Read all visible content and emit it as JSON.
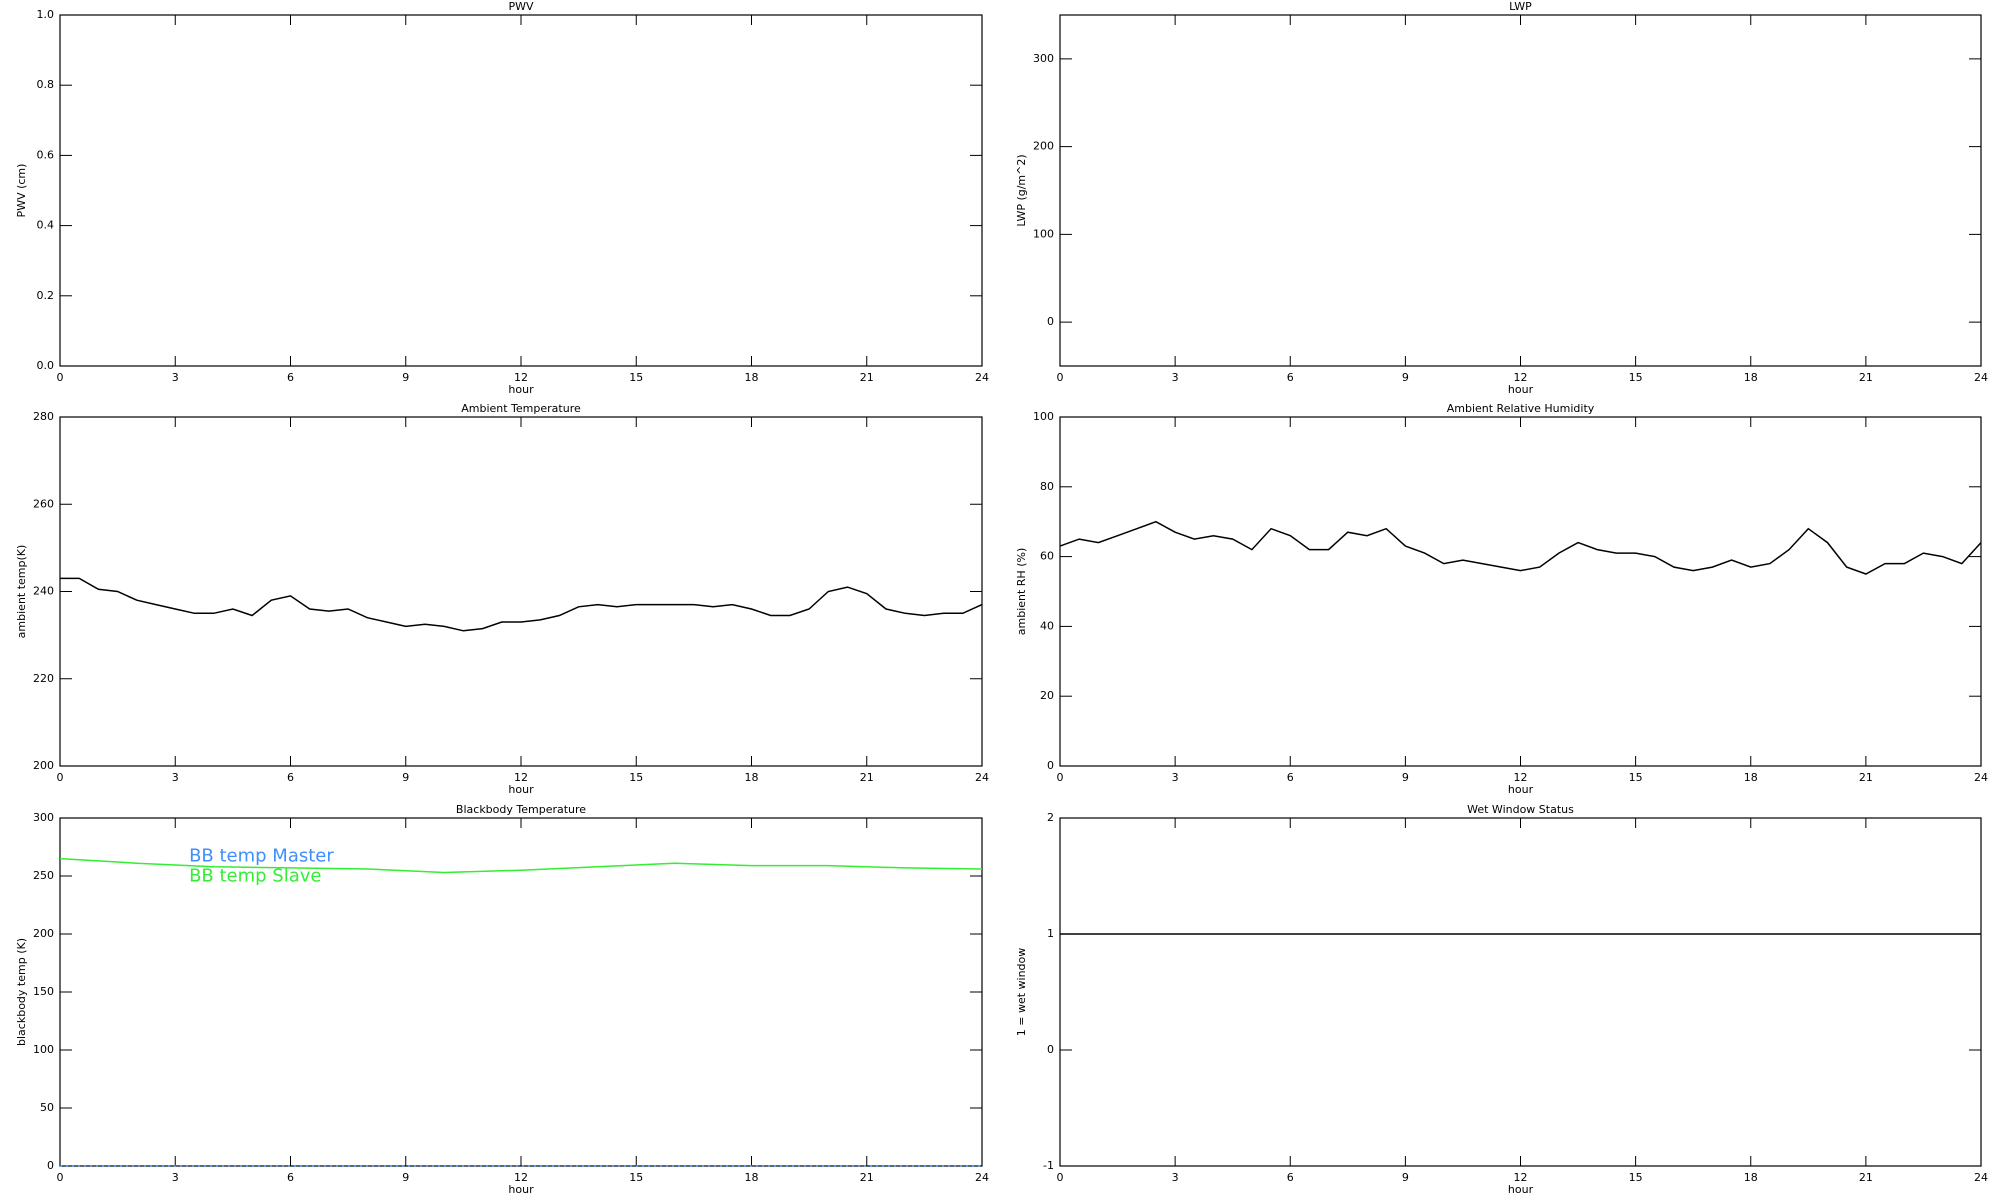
{
  "chart_data": [
    {
      "type": "line",
      "title": "PWV",
      "xlabel": "hour",
      "ylabel": "PWV (cm)",
      "xlim": [
        0,
        24
      ],
      "xticks": [
        0,
        3,
        6,
        9,
        12,
        15,
        18,
        21,
        24
      ],
      "ylim": [
        0,
        1
      ],
      "yticks": [
        {
          "value": 0,
          "label": "0.0"
        },
        0.2,
        0.4,
        0.6,
        0.8,
        {
          "value": 1,
          "label": "1.0"
        }
      ]
    },
    {
      "type": "line",
      "title": "LWP",
      "xlabel": "hour",
      "ylabel": "LWP (g/m^2)",
      "xlim": [
        0,
        24
      ],
      "xticks": [
        0,
        3,
        6,
        9,
        12,
        15,
        18,
        21,
        24
      ],
      "ylim": [
        -50,
        350
      ],
      "yticks": [
        0,
        100,
        200,
        300
      ]
    },
    {
      "type": "line",
      "title": "Ambient Temperature",
      "xlabel": "hour",
      "ylabel": "ambient temp(K)",
      "xlim": [
        0,
        24
      ],
      "xticks": [
        0,
        3,
        6,
        9,
        12,
        15,
        18,
        21,
        24
      ],
      "ylim": [
        200,
        280
      ],
      "yticks": [
        200,
        220,
        240,
        260,
        280
      ],
      "x": [
        0,
        0.5,
        1,
        1.5,
        2,
        2.5,
        3,
        3.5,
        4,
        4.5,
        5,
        5.5,
        6,
        6.5,
        7,
        7.5,
        8,
        8.5,
        9,
        9.5,
        10,
        10.5,
        11,
        11.5,
        12,
        12.5,
        13,
        13.5,
        14,
        14.5,
        15,
        15.5,
        16,
        16.5,
        17,
        17.5,
        18,
        18.5,
        19,
        19.5,
        20,
        20.5,
        21,
        21.5,
        22,
        22.5,
        23,
        23.5,
        24
      ],
      "series": [
        {
          "color": "#000000",
          "values": [
            243,
            243,
            240.5,
            240,
            238,
            237,
            236,
            235,
            235,
            236,
            234.5,
            238,
            239,
            236,
            235.5,
            236,
            234,
            233,
            232,
            232.5,
            232,
            231,
            231.5,
            233,
            233,
            233.5,
            234.5,
            236.5,
            237,
            236.5,
            237,
            237,
            237,
            237,
            236.5,
            237,
            236,
            234.5,
            234.5,
            236,
            240,
            241,
            239.5,
            236,
            235,
            234.5,
            235,
            235,
            237
          ]
        }
      ]
    },
    {
      "type": "line",
      "title": "Ambient Relative Humidity",
      "xlabel": "hour",
      "ylabel": "ambient RH (%)",
      "xlim": [
        0,
        24
      ],
      "xticks": [
        0,
        3,
        6,
        9,
        12,
        15,
        18,
        21,
        24
      ],
      "ylim": [
        0,
        100
      ],
      "yticks": [
        0,
        20,
        40,
        60,
        80,
        100
      ],
      "x": [
        0,
        0.5,
        1,
        1.5,
        2,
        2.5,
        3,
        3.5,
        4,
        4.5,
        5,
        5.5,
        6,
        6.5,
        7,
        7.5,
        8,
        8.5,
        9,
        9.5,
        10,
        10.5,
        11,
        11.5,
        12,
        12.5,
        13,
        13.5,
        14,
        14.5,
        15,
        15.5,
        16,
        16.5,
        17,
        17.5,
        18,
        18.5,
        19,
        19.5,
        20,
        20.5,
        21,
        21.5,
        22,
        22.5,
        23,
        23.5,
        24
      ],
      "series": [
        {
          "color": "#000000",
          "values": [
            63,
            65,
            64,
            66,
            68,
            70,
            67,
            65,
            66,
            65,
            62,
            68,
            66,
            62,
            62,
            67,
            66,
            68,
            63,
            61,
            58,
            59,
            58,
            57,
            56,
            57,
            61,
            64,
            62,
            61,
            61,
            60,
            57,
            56,
            57,
            59,
            57,
            58,
            62,
            68,
            64,
            57,
            55,
            58,
            58,
            61,
            60,
            58,
            64
          ]
        }
      ]
    },
    {
      "type": "line",
      "title": "Blackbody Temperature",
      "xlabel": "hour",
      "ylabel": "blackbody temp (K)",
      "xlim": [
        0,
        24
      ],
      "xticks": [
        0,
        3,
        6,
        9,
        12,
        15,
        18,
        21,
        24
      ],
      "ylim": [
        0,
        300
      ],
      "yticks": [
        0,
        50,
        100,
        150,
        200,
        250,
        300
      ],
      "legend": "upper left",
      "x": [
        0,
        2,
        4,
        6,
        8,
        10,
        12,
        14,
        16,
        18,
        20,
        22,
        24
      ],
      "series": [
        {
          "name": "BB temp Master",
          "color": "#3f8fff",
          "linestyle": "dotted",
          "values": [
            0,
            0,
            0,
            0,
            0,
            0,
            0,
            0,
            0,
            0,
            0,
            0,
            0
          ]
        },
        {
          "name": "BB temp Slave",
          "color": "#33ee33",
          "values": [
            265,
            261,
            258,
            257,
            256,
            253,
            255,
            258,
            261,
            259,
            259,
            257,
            256
          ]
        }
      ]
    },
    {
      "type": "line",
      "title": "Wet Window Status",
      "xlabel": "hour",
      "ylabel": "1 = wet window",
      "xlim": [
        0,
        24
      ],
      "xticks": [
        0,
        3,
        6,
        9,
        12,
        15,
        18,
        21,
        24
      ],
      "ylim": [
        -1,
        2
      ],
      "yticks": [
        -1,
        0,
        1,
        2
      ],
      "x": [
        0,
        24
      ],
      "series": [
        {
          "color": "#000000",
          "values": [
            1,
            1
          ]
        }
      ]
    }
  ]
}
